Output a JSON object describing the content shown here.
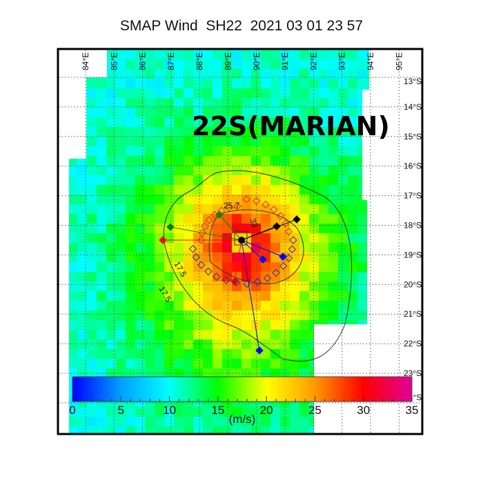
{
  "title": "SMAP Wind  SH22  2021 03 01 23 57",
  "storm_label": "22S(MARIAN)",
  "lon_labels": [
    "84°E",
    "85°E",
    "86°E",
    "87°E",
    "88°E",
    "89°E",
    "90°E",
    "91°E",
    "92°E",
    "93°E",
    "94°E",
    "95°E"
  ],
  "lat_labels": [
    "13°S",
    "14°S",
    "15°S",
    "16°S",
    "17°S",
    "18°S",
    "19°S",
    "20°S",
    "21°S",
    "22°S",
    "23°S",
    "24°S"
  ],
  "contour_labels": [
    "25.7",
    "33",
    "17.5",
    "17.5"
  ],
  "colorbar": {
    "ticks": [
      "0",
      "5",
      "10",
      "15",
      "20",
      "25",
      "30",
      "35"
    ],
    "unit": "(m/s)",
    "range": [
      0,
      35
    ],
    "colors": [
      "#0000ff",
      "#00a0ff",
      "#00ffff",
      "#00ff00",
      "#ffff00",
      "#ff9900",
      "#ff0000",
      "#e0009a"
    ]
  },
  "quadrant_colors": {
    "ne": "#000000",
    "se": "#0000ff",
    "sw": "#ff0000",
    "nw": "#008000"
  }
}
